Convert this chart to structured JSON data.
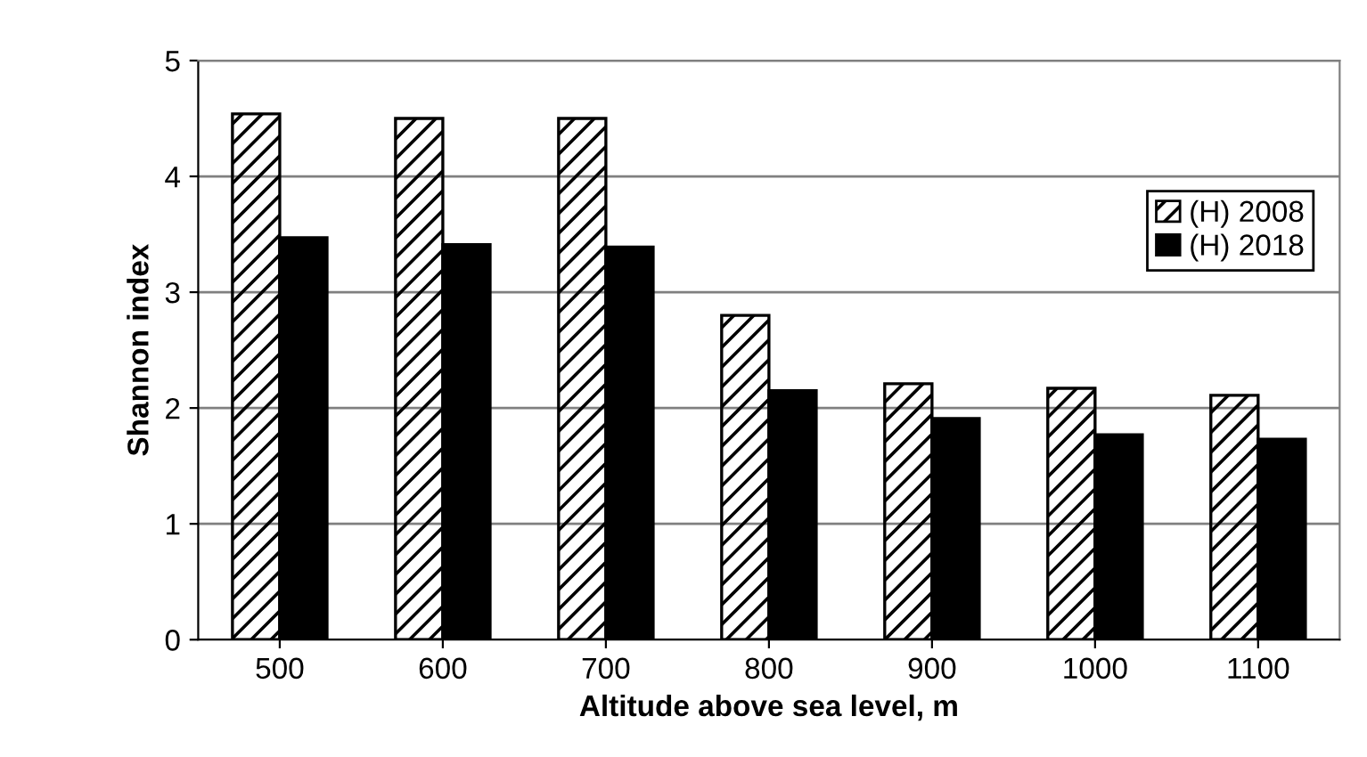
{
  "chart_data": {
    "type": "bar",
    "xlabel": "Altitude above sea level, m",
    "ylabel": "Shannon index",
    "categories": [
      "500",
      "600",
      "700",
      "800",
      "900",
      "1000",
      "1100"
    ],
    "series": [
      {
        "name": "(H) 2008",
        "color": "#000000",
        "values": [
          4.54,
          4.5,
          4.5,
          2.8,
          2.21,
          2.17,
          2.11
        ]
      },
      {
        "name": "(H) 2018",
        "color": "#000000",
        "values": [
          3.47,
          3.41,
          3.39,
          2.15,
          1.91,
          1.77,
          1.73
        ]
      }
    ],
    "ylim": [
      0,
      5
    ],
    "yticks": [
      0,
      1,
      2,
      3,
      4,
      5
    ],
    "grid": "y",
    "legend": "top right"
  }
}
